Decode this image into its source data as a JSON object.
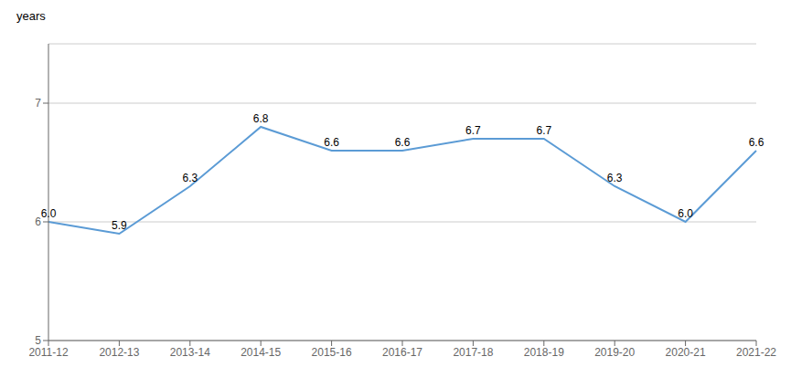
{
  "chart_data": {
    "type": "line",
    "ylabel": "years",
    "categories": [
      "2011-12",
      "2012-13",
      "2013-14",
      "2014-15",
      "2015-16",
      "2016-17",
      "2017-18",
      "2018-19",
      "2019-20",
      "2020-21",
      "2021-22"
    ],
    "values": [
      6.0,
      5.9,
      6.3,
      6.8,
      6.6,
      6.6,
      6.7,
      6.7,
      6.3,
      6.0,
      6.6
    ],
    "value_labels": [
      "6.0",
      "5.9",
      "6.3",
      "6.8",
      "6.6",
      "6.6",
      "6.7",
      "6.7",
      "6.3",
      "6.0",
      "6.6"
    ],
    "color": "#5B9BD5",
    "ylim": [
      5,
      7.5
    ],
    "yticks": [
      5,
      6,
      7
    ],
    "grid": true,
    "data_labels": true
  }
}
